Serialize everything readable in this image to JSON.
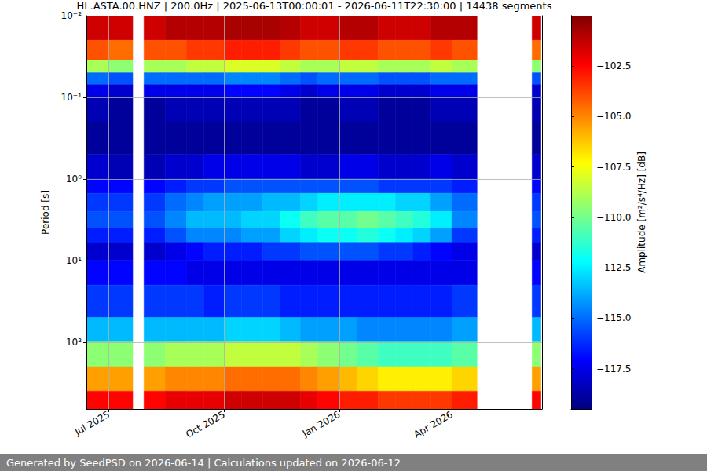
{
  "chart_data": {
    "type": "heatmap",
    "title": "HL.ASTA.00.HNZ | 200.0Hz | 2025-06-13T00:00:01 - 2026-06-11T22:30:00 | 14438 segments",
    "footer": "Generated by SeedPSD on 2026-06-14 | Calculations updated on 2026-06-12",
    "y_label": "Period [s]",
    "colorbar_label": "Amplitude [m²/s⁴/Hz] [dB]",
    "log": "y",
    "grid": true,
    "color": "jet",
    "xlim": [
      "2025-06-13T00:00:01",
      "2026-06-11T22:30:00"
    ],
    "xticks": [
      {
        "value": "2025-07-01",
        "label": "Jul 2025"
      },
      {
        "value": "2025-10-01",
        "label": "Oct 2025"
      },
      {
        "value": "2026-01-01",
        "label": "Jan 2026"
      },
      {
        "value": "2026-04-01",
        "label": "Apr 2026"
      }
    ],
    "ylim": [
      0.01,
      660
    ],
    "yticks": [
      {
        "value": 0.01,
        "label": "10⁻²"
      },
      {
        "value": 0.1,
        "label": "10⁻¹"
      },
      {
        "value": 1,
        "label": "10⁰"
      },
      {
        "value": 10,
        "label": "10¹"
      },
      {
        "value": 100,
        "label": "10²"
      }
    ],
    "colorbar_range": [
      -119.5,
      -100
    ],
    "colorbar_ticks": [
      {
        "value": -102.5,
        "label": "−102.5"
      },
      {
        "value": -105,
        "label": "−105.0"
      },
      {
        "value": -107.5,
        "label": "−107.5"
      },
      {
        "value": -110,
        "label": "−110.0"
      },
      {
        "value": -112.5,
        "label": "−112.5"
      },
      {
        "value": -115,
        "label": "−115.0"
      },
      {
        "value": -117.5,
        "label": "−117.5"
      }
    ],
    "x_edges": [
      "2025-06-13",
      "2025-07-01",
      "2025-07-20",
      "2025-07-29",
      "2025-08-15",
      "2025-09-01",
      "2025-09-15",
      "2025-10-01",
      "2025-10-15",
      "2025-11-01",
      "2025-11-15",
      "2025-12-01",
      "2025-12-15",
      "2026-01-01",
      "2026-01-15",
      "2026-02-01",
      "2026-02-15",
      "2026-03-01",
      "2026-03-15",
      "2026-04-01",
      "2026-04-21",
      "2026-06-04",
      "2026-06-11"
    ],
    "y_edges": [
      0.01,
      0.02,
      0.035,
      0.05,
      0.07,
      0.1,
      0.2,
      0.5,
      1,
      1.5,
      2.5,
      4,
      6,
      10,
      20,
      50,
      100,
      200,
      400,
      660
    ],
    "values": [
      [
        -101.5,
        -101.5,
        null,
        -101.5,
        -101,
        -101,
        -101,
        -100.8,
        -100.8,
        -100.8,
        -101,
        -101.5,
        -101.5,
        -101,
        -101,
        -101.5,
        -101.5,
        -101.5,
        -101,
        -101,
        null,
        -101.5
      ],
      [
        -104,
        -104.5,
        null,
        -104,
        -104,
        -103.5,
        -103.5,
        -103,
        -103,
        -103,
        -103.5,
        -104,
        -104,
        -103.5,
        -103.5,
        -104,
        -104,
        -104,
        -103.5,
        -104,
        null,
        -104.5
      ],
      [
        -109,
        -109.5,
        null,
        -109,
        -109,
        -108.5,
        -108.5,
        -108,
        -108,
        -108,
        -108.5,
        -109,
        -109,
        -108.5,
        -108.5,
        -109,
        -109,
        -109,
        -108.5,
        -109,
        null,
        -109.5
      ],
      [
        -115,
        -115.5,
        null,
        -115,
        -115,
        -115,
        -115,
        -114.5,
        -114.5,
        -114.5,
        -115,
        -115.5,
        -115,
        -115,
        -115,
        -115.5,
        -115.5,
        -115.5,
        -115,
        -115,
        null,
        -115.5
      ],
      [
        -117.5,
        -118,
        null,
        -117.5,
        -117.5,
        -117.5,
        -117.5,
        -117,
        -117,
        -117,
        -117.5,
        -118,
        -117.5,
        -117.5,
        -117.5,
        -118,
        -118,
        -118,
        -117.5,
        -117.5,
        null,
        -118
      ],
      [
        -118.5,
        -119,
        null,
        -119,
        -118.5,
        -118.5,
        -118.5,
        -118.5,
        -118.5,
        -118.5,
        -118.5,
        -119,
        -119,
        -118.5,
        -118.5,
        -119,
        -119,
        -119,
        -118.5,
        -118.5,
        null,
        -118.5
      ],
      [
        -119,
        -119,
        null,
        -119,
        -119,
        -119,
        -119,
        -119,
        -119,
        -119,
        -119,
        -119,
        -119,
        -119,
        -119,
        -119,
        -119,
        -119,
        -119,
        -119,
        null,
        -119
      ],
      [
        -118,
        -118.5,
        null,
        -118.5,
        -118,
        -118,
        -117.5,
        -117.5,
        -117.5,
        -117.5,
        -117.5,
        -118,
        -118,
        -117.5,
        -117.5,
        -118,
        -118,
        -118,
        -117.5,
        -118,
        null,
        -118
      ],
      [
        -117,
        -117,
        null,
        -117,
        -116.5,
        -116,
        -116,
        -115.5,
        -115.5,
        -115.5,
        -115.5,
        -115.5,
        -115.5,
        -115.5,
        -115.5,
        -116,
        -116,
        -116,
        -116,
        -116.5,
        null,
        -117
      ],
      [
        -116,
        -116,
        null,
        -116,
        -115,
        -114.5,
        -114,
        -114,
        -114,
        -113.5,
        -113.5,
        -113,
        -112.5,
        -112.5,
        -112.5,
        -112.5,
        -113,
        -113,
        -114,
        -115,
        null,
        -116
      ],
      [
        -115.5,
        -115.5,
        null,
        -115.5,
        -114.5,
        -113.5,
        -113.5,
        -113.5,
        -113,
        -113,
        -112,
        -111,
        -110.5,
        -110.5,
        -110,
        -110.5,
        -111,
        -111.5,
        -112.5,
        -114.5,
        null,
        -115.5
      ],
      [
        -116.5,
        -116.5,
        null,
        -116.5,
        -115.5,
        -114.5,
        -114.5,
        -114.5,
        -114,
        -114,
        -113,
        -112.5,
        -112,
        -112,
        -111.5,
        -112,
        -112.5,
        -113,
        -114,
        -116,
        null,
        -116.5
      ],
      [
        -118,
        -118,
        null,
        -118,
        -117.5,
        -117,
        -116.5,
        -116.5,
        -116.5,
        -116,
        -116,
        -115.5,
        -115.5,
        -115.5,
        -115.5,
        -116,
        -116,
        -116.5,
        -117,
        -117.5,
        null,
        -118
      ],
      [
        -117,
        -117,
        null,
        -117,
        -117,
        -117.5,
        -117.5,
        -117.5,
        -117.5,
        -117.5,
        -117.5,
        -117.5,
        -117.5,
        -117.5,
        -117.5,
        -117.5,
        -117.5,
        -117.5,
        -117.5,
        -117.5,
        null,
        -117
      ],
      [
        -116,
        -116,
        null,
        -116,
        -116,
        -116,
        -116.5,
        -116,
        -116,
        -116,
        -116.5,
        -116.5,
        -116.5,
        -116.5,
        -116.5,
        -116.5,
        -116.5,
        -116.5,
        -116.5,
        -116,
        null,
        -116
      ],
      [
        -113.5,
        -113.5,
        null,
        -113.5,
        -113.5,
        -113.5,
        -113.5,
        -113,
        -113,
        -113,
        -113.5,
        -114,
        -114,
        -114,
        -114.5,
        -114.5,
        -114.5,
        -114.5,
        -114.5,
        -114,
        null,
        -113.5
      ],
      [
        -109.5,
        -109.5,
        null,
        -109.5,
        -109,
        -109,
        -109,
        -108.5,
        -108.5,
        -108.5,
        -108.5,
        -109,
        -109.5,
        -110,
        -110.5,
        -111,
        -111,
        -111,
        -111,
        -110.5,
        null,
        -109.5
      ],
      [
        -105.5,
        -105.5,
        null,
        -105.5,
        -105,
        -105,
        -105,
        -104.5,
        -104.5,
        -104.5,
        -104.5,
        -105,
        -105.5,
        -106,
        -106.5,
        -107,
        -107,
        -107,
        -107,
        -106.5,
        null,
        -105.5
      ],
      [
        -102.5,
        -102.5,
        null,
        -102.5,
        -102,
        -102,
        -102,
        -101.5,
        -101.5,
        -101.5,
        -101.5,
        -102,
        -102.5,
        -103,
        -103,
        -103.5,
        -103.5,
        -103.5,
        -103.5,
        -103,
        null,
        -102.5
      ]
    ]
  }
}
